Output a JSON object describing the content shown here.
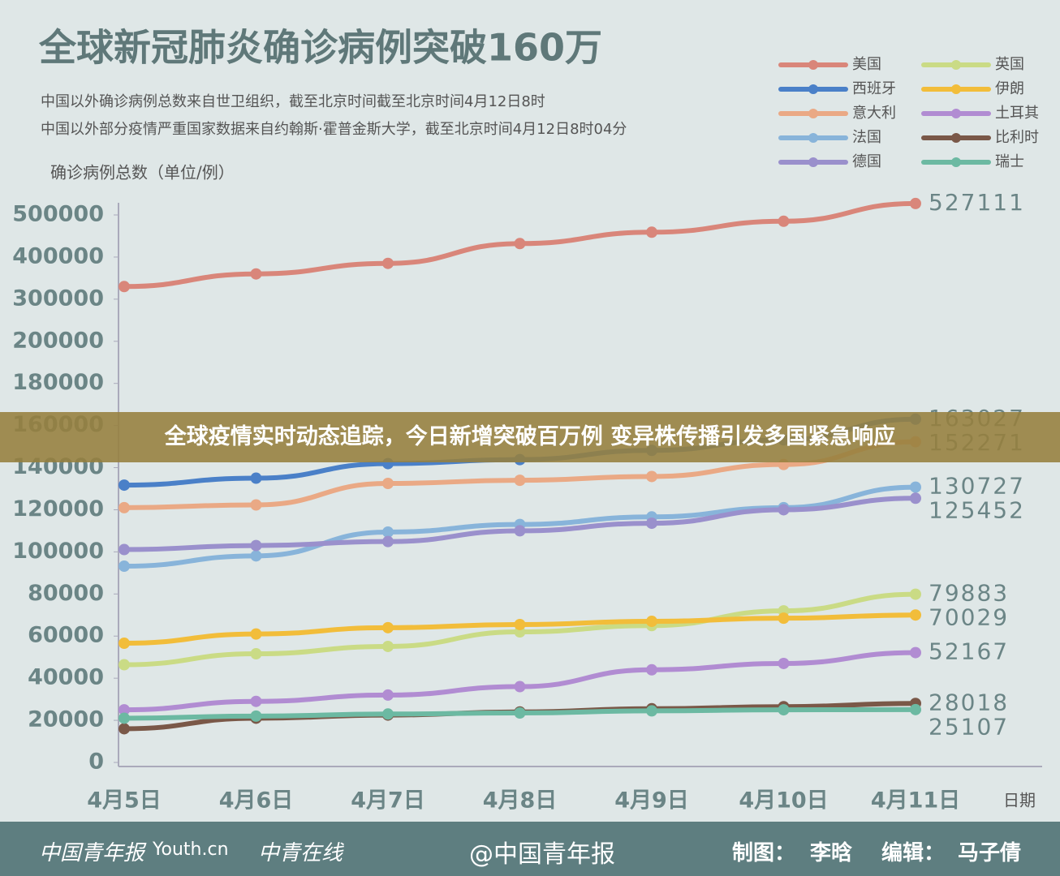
{
  "chart_data": {
    "type": "line",
    "title": "全球新冠肺炎确诊病例突破160万",
    "subtitle": [
      "中国以外确诊病例总数来自世卫组织，截至北京时间截至北京时间4月12日8时",
      "中国以外部分疫情严重国家数据来自约翰斯·霍普金斯大学，截至北京时间4月12日8时04分"
    ],
    "y_label": "确诊病例总数（单位/例）",
    "x_label": "日期",
    "categories": [
      "4月5日",
      "4月6日",
      "4月7日",
      "4月8日",
      "4月9日",
      "4月10日",
      "4月11日"
    ],
    "ylim": [
      0,
      500000
    ],
    "yticks": [
      0,
      20000,
      40000,
      60000,
      80000,
      100000,
      120000,
      140000,
      160000,
      180000,
      200000,
      300000,
      400000,
      500000
    ],
    "series": [
      {
        "name": "美国",
        "color": "#d9867a",
        "values": [
          330000,
          360000,
          385000,
          432000,
          459000,
          485000,
          527111
        ]
      },
      {
        "name": "西班牙",
        "color": "#4a80c8",
        "values": [
          131700,
          135000,
          141900,
          143800,
          148200,
          153200,
          163027
        ]
      },
      {
        "name": "意大利",
        "color": "#eaa985",
        "values": [
          121000,
          122300,
          132500,
          134000,
          135800,
          141500,
          152271
        ]
      },
      {
        "name": "法国",
        "color": "#88b4da",
        "values": [
          93200,
          98100,
          109400,
          113000,
          116600,
          121000,
          130727
        ]
      },
      {
        "name": "德国",
        "color": "#9a90cc",
        "values": [
          101100,
          103000,
          104900,
          110000,
          113600,
          120000,
          125452
        ]
      },
      {
        "name": "英国",
        "color": "#cadb85",
        "values": [
          46400,
          51600,
          55100,
          62000,
          65000,
          72000,
          79883
        ]
      },
      {
        "name": "伊朗",
        "color": "#f2bd3a",
        "values": [
          56600,
          61000,
          64000,
          65500,
          67000,
          68500,
          70029
        ]
      },
      {
        "name": "土耳其",
        "color": "#b18cd2",
        "values": [
          25000,
          29000,
          32000,
          36000,
          44000,
          47000,
          52167
        ]
      },
      {
        "name": "比利时",
        "color": "#7a5848",
        "values": [
          16000,
          21000,
          22500,
          24000,
          25500,
          26500,
          28018
        ]
      },
      {
        "name": "瑞士",
        "color": "#6cb9a2",
        "values": [
          21000,
          22000,
          23000,
          23500,
          24500,
          25000,
          25107
        ]
      }
    ]
  },
  "banner": "全球疫情实时动态追踪，今日新增突破百万例 变异株传播引发多国紧急响应",
  "footer": {
    "logos": [
      "中国青年报",
      "Youth.cn",
      "中青在线"
    ],
    "weibo": "@中国青年报",
    "credit_label_1": "制图：",
    "credit_name_1": "李晗",
    "credit_label_2": "编辑：",
    "credit_name_2": "马子倩"
  }
}
